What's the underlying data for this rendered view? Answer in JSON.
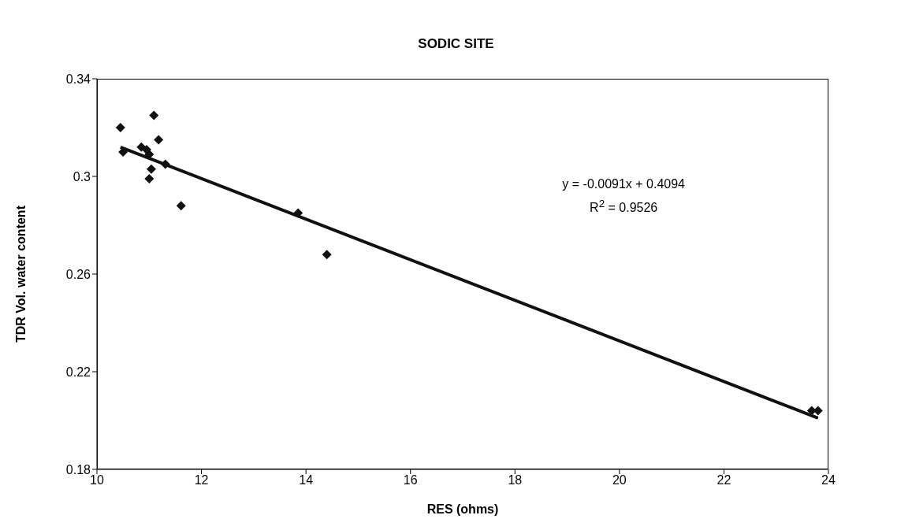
{
  "chart_data": {
    "type": "scatter",
    "title": "SODIC SITE",
    "xlabel": "RES (ohms)",
    "ylabel": "TDR Vol. water content",
    "xlim": [
      10,
      24
    ],
    "xticks": [
      10,
      12,
      14,
      16,
      18,
      20,
      22,
      24
    ],
    "ylim": [
      0.18,
      0.34
    ],
    "yticks": [
      0.18,
      0.22,
      0.26,
      0.3,
      0.34
    ],
    "marker": "diamond",
    "series": [
      {
        "color": "#111111",
        "x": [
          10.45,
          10.5,
          10.85,
          10.95,
          11.0,
          11.09,
          11.18,
          11.04,
          11.0,
          11.31,
          11.61,
          13.85,
          14.4,
          23.68,
          23.8
        ],
        "values": [
          0.32,
          0.31,
          0.312,
          0.311,
          0.309,
          0.325,
          0.315,
          0.303,
          0.299,
          0.305,
          0.288,
          0.285,
          0.268,
          0.204,
          0.204
        ]
      },
      {
        "type": "line",
        "marker": "none",
        "line_style": "solid",
        "color": "#111111",
        "x": [
          10.45,
          23.8
        ],
        "values": [
          0.312,
          0.201
        ]
      }
    ],
    "annotations": [
      "y = -0.0091x + 0.4094",
      "R$^{2}$ = 0.9526"
    ]
  }
}
